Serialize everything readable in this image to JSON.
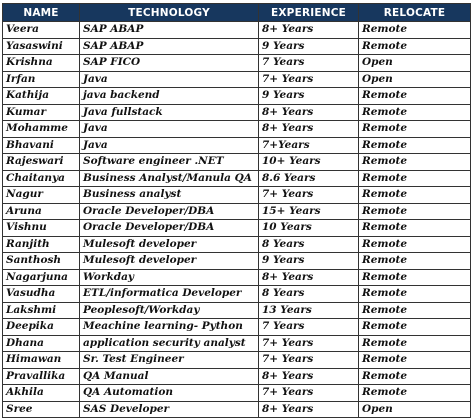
{
  "table": {
    "headers": [
      "NAME",
      "TECHNOLOGY",
      "EXPERIENCE",
      "RELOCATE"
    ],
    "rows": [
      [
        "Veera",
        "SAP ABAP",
        "8+ Years",
        "Remote"
      ],
      [
        "Yasaswini",
        "SAP ABAP",
        "9 Years",
        "Remote"
      ],
      [
        "Krishna",
        "SAP FICO",
        "7 Years",
        "Open"
      ],
      [
        "Irfan",
        "Java",
        "7+ Years",
        "Open"
      ],
      [
        "Kathija",
        "java backend",
        "9 Years",
        "Remote"
      ],
      [
        "Kumar",
        "Java fullstack",
        "8+ Years",
        "Remote"
      ],
      [
        "Mohamme",
        "Java",
        "8+ Years",
        "Remote"
      ],
      [
        "Bhavani",
        "Java",
        "7+Years",
        "Remote"
      ],
      [
        "Rajeswari",
        "Software engineer .NET",
        "10+ Years",
        "Remote"
      ],
      [
        "Chaitanya",
        "Business Analyst/Manula QA",
        "8.6 Years",
        "Remote"
      ],
      [
        "Nagur",
        "Business analyst",
        "7+ Years",
        "Remote"
      ],
      [
        "Aruna",
        "Oracle Developer/DBA",
        "15+ Years",
        "Remote"
      ],
      [
        "Vishnu",
        "Oracle Developer/DBA",
        "10 Years",
        "Remote"
      ],
      [
        "Ranjith",
        "Mulesoft developer",
        "8 Years",
        "Remote"
      ],
      [
        "Santhosh",
        "Mulesoft developer",
        "9 Years",
        "Remote"
      ],
      [
        "Nagarjuna",
        "Workday",
        "8+ Years",
        "Remote"
      ],
      [
        "Vasudha",
        "ETL/informatica Developer",
        "8 Years",
        "Remote"
      ],
      [
        "Lakshmi",
        "Peoplesoft/Workday",
        "13 Years",
        "Remote"
      ],
      [
        "Deepika",
        "Meachine learning- Python",
        "7 Years",
        "Remote"
      ],
      [
        "Dhana",
        "application security analyst",
        "7+ Years",
        "Remote"
      ],
      [
        "Himawan",
        "Sr. Test Engineer",
        "7+ Years",
        "Remote"
      ],
      [
        "Pravallika",
        "QA Manual",
        "8+ Years",
        "Remote"
      ],
      [
        "Akhila",
        "QA Automation",
        "7+ Years",
        "Remote"
      ],
      [
        "Sree",
        "SAS Developer",
        "8+ Years",
        "Open"
      ]
    ]
  },
  "colors": {
    "header_bg": "#17375e",
    "header_text": "#ffffff",
    "border": "#333333"
  }
}
